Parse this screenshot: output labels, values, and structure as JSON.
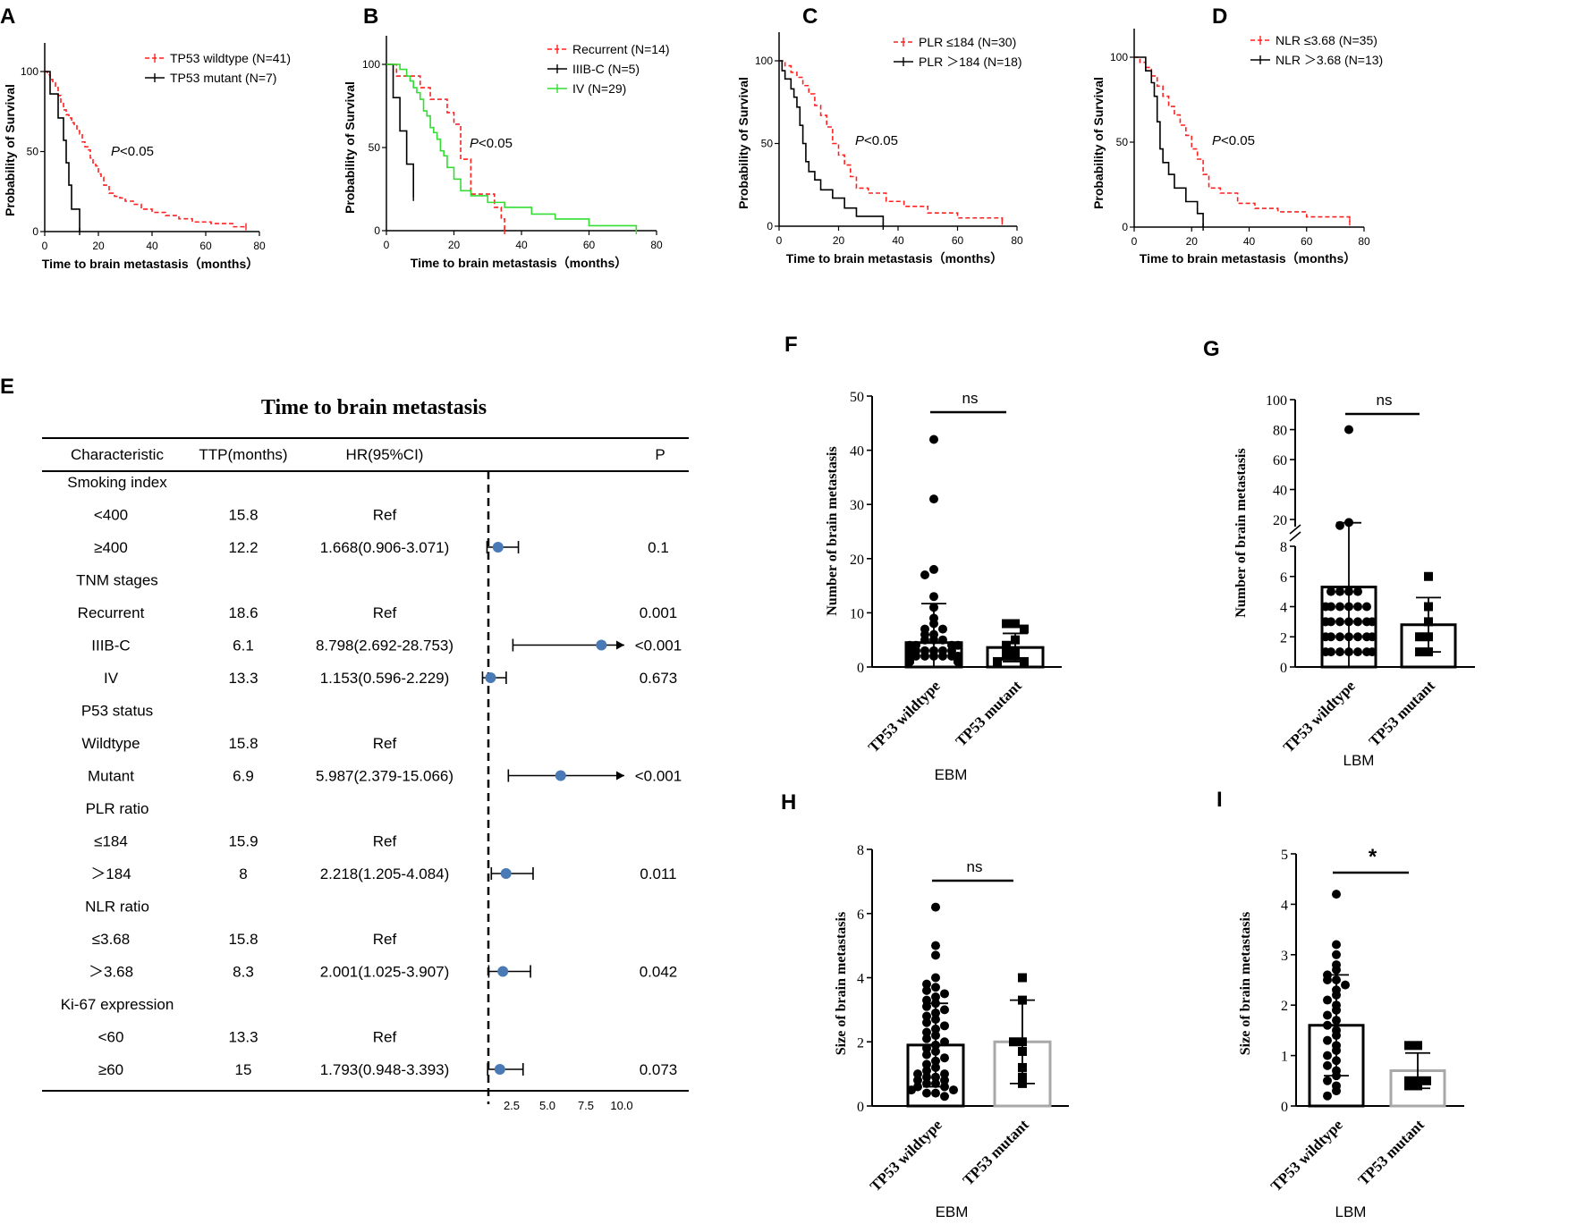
{
  "colors": {
    "red": "#ff2020",
    "black": "#000000",
    "green": "#33dd33",
    "dot": "#4a7ab5",
    "gray": "#a8a8a8"
  },
  "km_common": {
    "xlabel": "Time to brain metastasis（months）",
    "ylabel": "Probability of Survival",
    "pvalue": "P<0.05",
    "xticks": [
      0,
      20,
      40,
      60,
      80
    ],
    "yticks": [
      0,
      50,
      100
    ]
  },
  "chart_data": [
    {
      "id": "A",
      "type": "line",
      "panel_label": "A",
      "xlim": [
        0,
        80
      ],
      "ylim": [
        0,
        100
      ],
      "series": [
        {
          "name": "TP53 wildtype (N=41)",
          "color": "#ff2020",
          "dashed": true,
          "x": [
            0,
            1,
            2,
            3,
            4,
            5,
            6,
            7,
            8,
            9,
            10,
            11,
            12,
            13,
            14,
            15,
            16,
            17,
            18,
            19,
            20,
            21,
            22,
            24,
            26,
            28,
            30,
            33,
            36,
            40,
            45,
            50,
            55,
            62,
            70,
            75
          ],
          "y": [
            100,
            98,
            95,
            93,
            90,
            85,
            80,
            76,
            73,
            71,
            68,
            66,
            63,
            61,
            56,
            53,
            51,
            46,
            43,
            41,
            36,
            34,
            29,
            24,
            22,
            21,
            19,
            17,
            14,
            12,
            10,
            8,
            6,
            5,
            3,
            3
          ]
        },
        {
          "name": "TP53 mutant  (N=7)",
          "color": "#000000",
          "dashed": false,
          "x": [
            0,
            2,
            5,
            7,
            8,
            9,
            10,
            13
          ],
          "y": [
            100,
            86,
            71,
            57,
            43,
            29,
            14,
            0
          ]
        }
      ]
    },
    {
      "id": "B",
      "type": "line",
      "panel_label": "B",
      "xlim": [
        0,
        80
      ],
      "ylim": [
        0,
        100
      ],
      "series": [
        {
          "name": "Recurrent (N=14)",
          "color": "#ff2020",
          "dashed": true,
          "x": [
            0,
            3,
            10,
            13,
            18,
            20,
            22,
            25,
            32,
            34,
            35
          ],
          "y": [
            100,
            93,
            86,
            79,
            71,
            64,
            43,
            22,
            14,
            7,
            0
          ]
        },
        {
          "name": "IIIB-C (N=5)",
          "color": "#000000",
          "dashed": false,
          "x": [
            0,
            2,
            4,
            6,
            8
          ],
          "y": [
            100,
            80,
            60,
            40,
            20
          ]
        },
        {
          "name": "IV (N=29)",
          "color": "#33dd33",
          "dashed": false,
          "x": [
            0,
            4,
            6,
            7,
            8,
            9,
            10,
            11,
            12,
            13,
            14,
            15,
            16,
            17,
            18,
            20,
            22,
            25,
            30,
            35,
            43,
            50,
            60,
            74
          ],
          "y": [
            100,
            97,
            93,
            90,
            86,
            83,
            79,
            72,
            69,
            62,
            59,
            55,
            48,
            45,
            38,
            31,
            24,
            21,
            17,
            14,
            10,
            7,
            3,
            0
          ]
        }
      ]
    },
    {
      "id": "C",
      "type": "line",
      "panel_label": "C",
      "xlim": [
        0,
        80
      ],
      "ylim": [
        0,
        100
      ],
      "series": [
        {
          "name": "PLR ≤184 (N=30)",
          "color": "#ff2020",
          "dashed": true,
          "x": [
            0,
            2,
            4,
            6,
            8,
            10,
            12,
            14,
            16,
            18,
            20,
            22,
            24,
            26,
            30,
            36,
            42,
            50,
            60,
            75
          ],
          "y": [
            100,
            97,
            93,
            90,
            85,
            80,
            73,
            67,
            60,
            50,
            43,
            37,
            30,
            23,
            20,
            15,
            12,
            8,
            5,
            3
          ]
        },
        {
          "name": "PLR ＞184 (N=18)",
          "color": "#000000",
          "dashed": false,
          "x": [
            0,
            1,
            2,
            4,
            5,
            6,
            7,
            8,
            9,
            10,
            12,
            14,
            18,
            22,
            26,
            35
          ],
          "y": [
            100,
            94,
            89,
            83,
            78,
            72,
            61,
            50,
            39,
            33,
            28,
            22,
            17,
            11,
            6,
            0
          ]
        }
      ]
    },
    {
      "id": "D",
      "type": "line",
      "panel_label": "D",
      "xlim": [
        0,
        80
      ],
      "ylim": [
        0,
        100
      ],
      "series": [
        {
          "name": "NLR ≤3.68 (N=35)",
          "color": "#ff2020",
          "dashed": true,
          "x": [
            0,
            2,
            4,
            6,
            8,
            10,
            12,
            14,
            16,
            18,
            20,
            22,
            24,
            26,
            30,
            36,
            42,
            50,
            60,
            75
          ],
          "y": [
            100,
            97,
            94,
            89,
            83,
            77,
            71,
            66,
            60,
            54,
            46,
            40,
            31,
            23,
            20,
            14,
            11,
            9,
            6,
            3
          ]
        },
        {
          "name": "NLR ＞3.68 (N=13)",
          "color": "#000000",
          "dashed": false,
          "x": [
            0,
            4,
            6,
            7,
            8,
            9,
            10,
            12,
            14,
            18,
            22,
            24
          ],
          "y": [
            100,
            92,
            85,
            77,
            62,
            46,
            38,
            31,
            23,
            15,
            8,
            0
          ]
        }
      ]
    },
    {
      "id": "E",
      "type": "table",
      "panel_label": "E",
      "title": "Time to brain metastasis",
      "headers": [
        "Characteristic",
        "TTP(months)",
        "HR(95%CI)",
        "P"
      ],
      "axis_ticks": [
        "2.5",
        "5.0",
        "7.5",
        "10.0"
      ],
      "reference_hr": 1,
      "rows": [
        {
          "label": "Smoking index",
          "group": true
        },
        {
          "label": "<400",
          "ttp": "15.8",
          "hr": "Ref",
          "p": ""
        },
        {
          "label": "≥400",
          "ttp": "12.2",
          "hr": "1.668(0.906-3.071)",
          "p": "0.1",
          "est": 1.668,
          "lo": 0.906,
          "hi": 3.071,
          "arrow": false
        },
        {
          "label": "TNM stages",
          "group": true
        },
        {
          "label": "Recurrent",
          "ttp": "18.6",
          "hr": "Ref",
          "p": "0.001"
        },
        {
          "label": "IIIB-C",
          "ttp": "6.1",
          "hr": "8.798(2.692-28.753)",
          "p": "<0.001",
          "est": 8.798,
          "lo": 2.692,
          "hi": 28.753,
          "arrow": true
        },
        {
          "label": "IV",
          "ttp": "13.3",
          "hr": "1.153(0.596-2.229)",
          "p": "0.673",
          "est": 1.153,
          "lo": 0.596,
          "hi": 2.229,
          "arrow": false
        },
        {
          "label": "P53 status",
          "group": true
        },
        {
          "label": "Wildtype",
          "ttp": "15.8",
          "hr": "Ref",
          "p": ""
        },
        {
          "label": "Mutant",
          "ttp": "6.9",
          "hr": "5.987(2.379-15.066)",
          "p": "<0.001",
          "est": 5.987,
          "lo": 2.379,
          "hi": 15.066,
          "arrow": true
        },
        {
          "label": "PLR ratio",
          "group": true
        },
        {
          "label": "≤184",
          "ttp": "15.9",
          "hr": "Ref",
          "p": ""
        },
        {
          "label": "＞184",
          "ttp": "8",
          "hr": "2.218(1.205-4.084)",
          "p": "0.011",
          "est": 2.218,
          "lo": 1.205,
          "hi": 4.084,
          "arrow": false
        },
        {
          "label": "NLR ratio",
          "group": true
        },
        {
          "label": "≤3.68",
          "ttp": "15.8",
          "hr": "Ref",
          "p": ""
        },
        {
          "label": "＞3.68",
          "ttp": "8.3",
          "hr": "2.001(1.025-3.907)",
          "p": "0.042",
          "est": 2.001,
          "lo": 1.025,
          "hi": 3.907,
          "arrow": false
        },
        {
          "label": "Ki-67 expression",
          "group": true
        },
        {
          "label": "<60",
          "ttp": "13.3",
          "hr": "Ref",
          "p": ""
        },
        {
          "label": "≥60",
          "ttp": "15",
          "hr": "1.793(0.948-3.393)",
          "p": "0.073",
          "est": 1.793,
          "lo": 0.948,
          "hi": 3.393,
          "arrow": false
        }
      ]
    },
    {
      "id": "F",
      "type": "bar",
      "panel_label": "F",
      "ylabel": "Number of brain metastasis",
      "xlabel": "EBM",
      "ylim": [
        0,
        50
      ],
      "yticks": [
        0,
        10,
        20,
        30,
        40,
        50
      ],
      "sig": "ns",
      "categories": [
        "TP53 wildtype",
        "TP53 mutant"
      ],
      "values": [
        4.5,
        3.6
      ],
      "sd": [
        7.2,
        2.6
      ],
      "points": [
        [
          42,
          31,
          18,
          17,
          13,
          11,
          9,
          8,
          7,
          7,
          6,
          6,
          5,
          5,
          5,
          4,
          4,
          4,
          4,
          3,
          3,
          3,
          3,
          3,
          3,
          2,
          2,
          2,
          2,
          2,
          2,
          2,
          1,
          1,
          1,
          1,
          1,
          1,
          1,
          1,
          1,
          1,
          1,
          1,
          1
        ],
        [
          8,
          8,
          7,
          5,
          4,
          3,
          3,
          2,
          2,
          1,
          1
        ]
      ]
    },
    {
      "id": "G",
      "type": "bar",
      "panel_label": "G",
      "ylabel": "Number of brain metastasis",
      "xlabel": "LBM",
      "ylim": [
        0,
        100
      ],
      "broken_axis": [
        8,
        20
      ],
      "yticks": [
        0,
        2,
        4,
        6,
        8,
        20,
        40,
        60,
        80,
        100
      ],
      "sig": "ns",
      "categories": [
        "TP53 wildtype",
        "TP53 mutant"
      ],
      "values": [
        5.3,
        2.8
      ],
      "sd": [
        12.5,
        1.8
      ],
      "points": [
        [
          80,
          18,
          16,
          5,
          5,
          5,
          5,
          4,
          4,
          4,
          4,
          4,
          4,
          3,
          3,
          3,
          3,
          3,
          3,
          3,
          3,
          2,
          2,
          2,
          2,
          2,
          2,
          2,
          1,
          1,
          1,
          1,
          1,
          1,
          1
        ],
        [
          6,
          4,
          3,
          2,
          2,
          1,
          1
        ]
      ]
    },
    {
      "id": "H",
      "type": "bar",
      "panel_label": "H",
      "ylabel": "Size of brain metastasis",
      "xlabel": "EBM",
      "ylim": [
        0,
        8
      ],
      "yticks": [
        0,
        2,
        4,
        6,
        8
      ],
      "sig": "ns",
      "categories": [
        "TP53 wildtype",
        "TP53 mutant"
      ],
      "values": [
        1.9,
        2.0
      ],
      "sd": [
        1.3,
        1.3
      ],
      "points": [
        [
          6.2,
          5.0,
          4.7,
          4.0,
          3.8,
          3.7,
          3.6,
          3.5,
          3.4,
          3.3,
          3.2,
          3.1,
          3.0,
          2.9,
          2.8,
          2.7,
          2.6,
          2.5,
          2.4,
          2.3,
          2.2,
          2.1,
          2.0,
          1.9,
          1.8,
          1.7,
          1.6,
          1.5,
          1.4,
          1.3,
          1.2,
          1.1,
          1.0,
          1.0,
          0.9,
          0.9,
          0.8,
          0.8,
          0.7,
          0.7,
          0.6,
          0.6,
          0.5,
          0.5,
          0.4,
          0.4,
          0.3
        ],
        [
          4.0,
          3.3,
          2.0,
          2.0,
          1.7,
          1.2,
          0.9,
          0.7
        ]
      ]
    },
    {
      "id": "I",
      "type": "bar",
      "panel_label": "I",
      "ylabel": "Size of brain metastasis",
      "xlabel": "LBM",
      "ylim": [
        0,
        5
      ],
      "yticks": [
        0,
        1,
        2,
        3,
        4,
        5
      ],
      "sig": "*",
      "categories": [
        "TP53 wildtype",
        "TP53 mutant"
      ],
      "values": [
        1.6,
        0.7
      ],
      "sd": [
        1.0,
        0.35
      ],
      "points": [
        [
          4.2,
          3.2,
          3.0,
          2.8,
          2.7,
          2.6,
          2.5,
          2.5,
          2.4,
          2.3,
          2.2,
          2.1,
          2.0,
          1.9,
          1.8,
          1.7,
          1.6,
          1.5,
          1.4,
          1.3,
          1.2,
          1.1,
          1.0,
          0.9,
          0.8,
          0.7,
          0.6,
          0.5,
          0.4,
          0.3,
          0.2
        ],
        [
          1.2,
          1.2,
          0.5,
          0.5,
          0.5,
          0.4,
          0.4
        ]
      ]
    }
  ]
}
